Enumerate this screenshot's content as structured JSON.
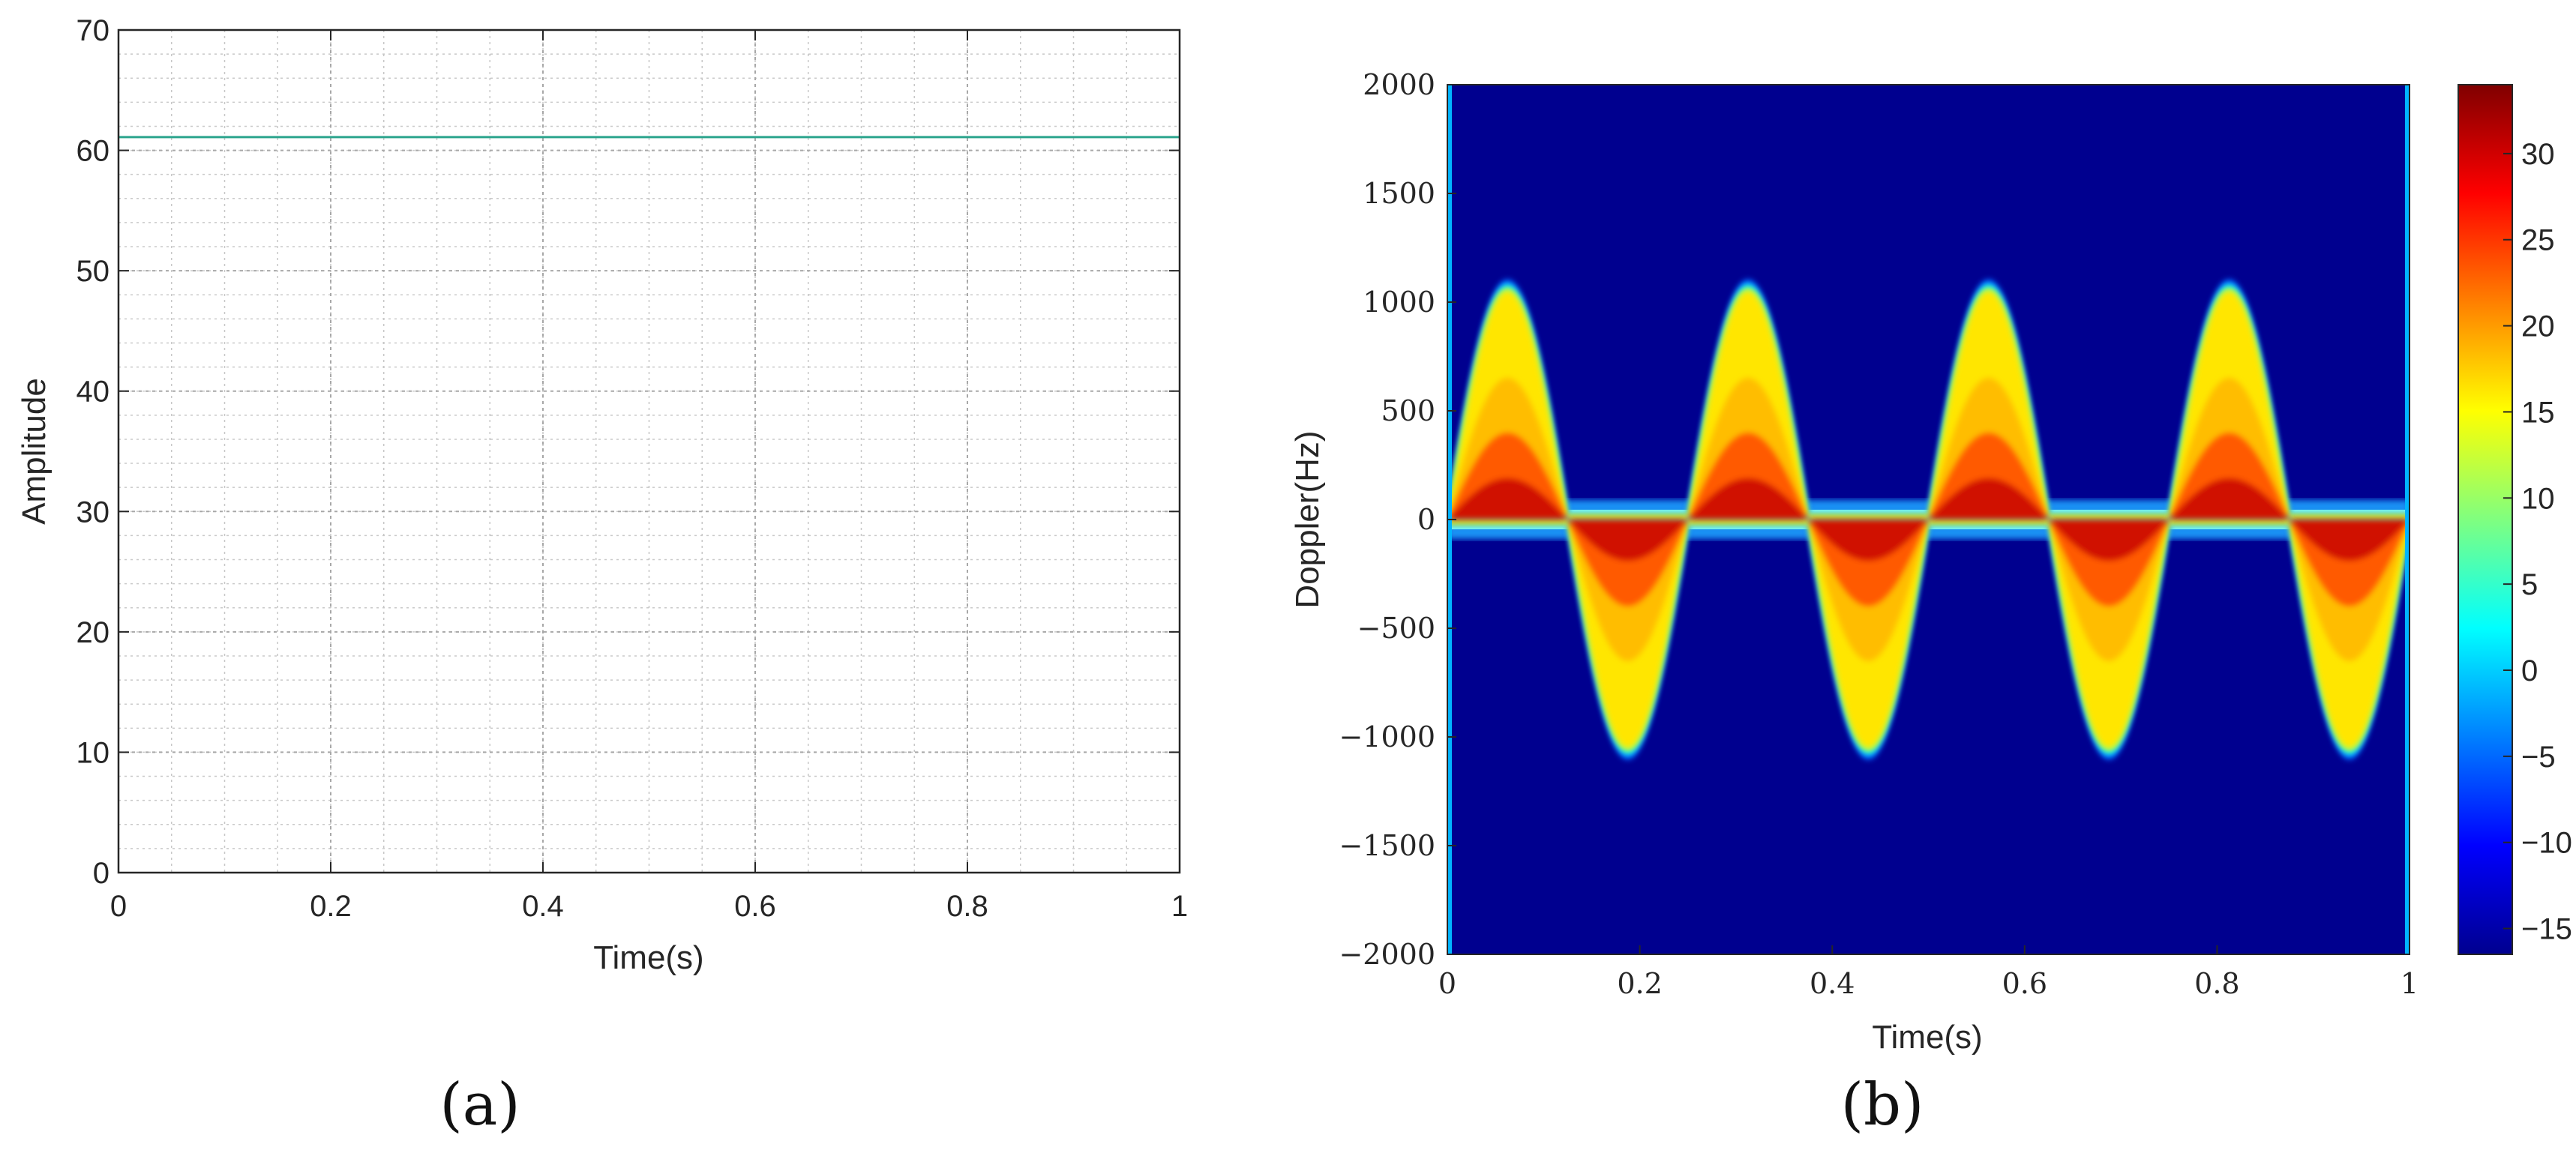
{
  "chart_data": [
    {
      "type": "line",
      "panel_label": "(a)",
      "xlabel": "Time(s)",
      "ylabel": "Amplitude",
      "xlim": [
        0,
        1
      ],
      "ylim": [
        0,
        70
      ],
      "xticks": [
        "0",
        "0.2",
        "0.4",
        "0.6",
        "0.8",
        "1"
      ],
      "yticks": [
        "0",
        "10",
        "20",
        "30",
        "40",
        "50",
        "60",
        "70"
      ],
      "grid": true,
      "minor_grid": true,
      "series": [
        {
          "x": [
            0,
            1
          ],
          "values": [
            61.1,
            61.1
          ],
          "color": "#2ca58d"
        }
      ]
    },
    {
      "type": "heatmap",
      "panel_label": "(b)",
      "xlabel": "Time(s)",
      "ylabel": "Doppler(Hz)",
      "xlim": [
        0,
        1
      ],
      "ylim": [
        -2000,
        2000
      ],
      "xticks": [
        "0",
        "0.2",
        "0.4",
        "0.6",
        "0.8",
        "1"
      ],
      "yticks": [
        "−2000",
        "−1500",
        "−1000",
        "−500",
        "0",
        "500",
        "1000",
        "1500",
        "2000"
      ],
      "colorbar": {
        "ticks": [
          "−15",
          "−10",
          "−5",
          "0",
          "5",
          "10",
          "15",
          "20",
          "25",
          "30"
        ],
        "range": [
          -16.5,
          34
        ],
        "colormap": "jet"
      },
      "micro_doppler": {
        "period_s": 0.25,
        "peak_hz": 1050,
        "peak_times_s": [
          0.062,
          0.312,
          0.562,
          0.812
        ],
        "trough_times_s": [
          0.188,
          0.438,
          0.688,
          0.938
        ],
        "background_color": "#00008f"
      }
    }
  ]
}
